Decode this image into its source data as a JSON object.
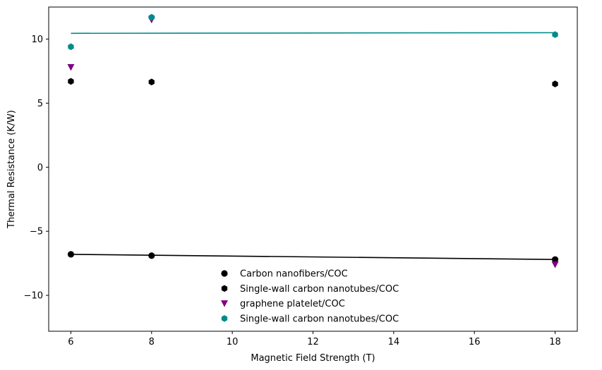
{
  "chart_data": {
    "type": "scatter",
    "title": "",
    "xlabel": "Magnetic Field Strength (T)",
    "ylabel": "Thermal Resistance (K/W)",
    "xlim": [
      5.45,
      18.55
    ],
    "ylim": [
      -12.8,
      12.5
    ],
    "xticks": [
      6,
      8,
      10,
      12,
      14,
      16,
      18
    ],
    "yticks": [
      -10,
      -5,
      0,
      5,
      10
    ],
    "ytick_labels": [
      "−10",
      "−5",
      "0",
      "5",
      "10"
    ],
    "grid": false,
    "legend_position": "lower-center",
    "series": [
      {
        "name": "Carbon nanofibers/COC",
        "marker": "circle",
        "color": "#000000",
        "x": [
          6,
          8,
          18
        ],
        "y": [
          -6.8,
          -6.9,
          -7.2
        ],
        "fit_line": {
          "x": [
            6,
            18
          ],
          "y": [
            -6.8,
            -7.2
          ]
        }
      },
      {
        "name": "Single-wall carbon nanotubes/COC",
        "marker": "hexagon",
        "color": "#000000",
        "x": [
          6,
          8,
          18
        ],
        "y": [
          6.7,
          6.65,
          6.5
        ]
      },
      {
        "name": "graphene platelet/COC",
        "marker": "triangle-down",
        "color": "#800080",
        "x": [
          6,
          8,
          18
        ],
        "y": [
          7.8,
          11.5,
          -7.6
        ]
      },
      {
        "name": "Single-wall carbon nanotubes/COC",
        "marker": "hexagon",
        "color": "#008b8b",
        "x": [
          6,
          8,
          18
        ],
        "y": [
          9.4,
          11.7,
          10.35
        ],
        "fit_line": {
          "x": [
            6,
            18
          ],
          "y": [
            10.45,
            10.5
          ]
        }
      }
    ]
  }
}
